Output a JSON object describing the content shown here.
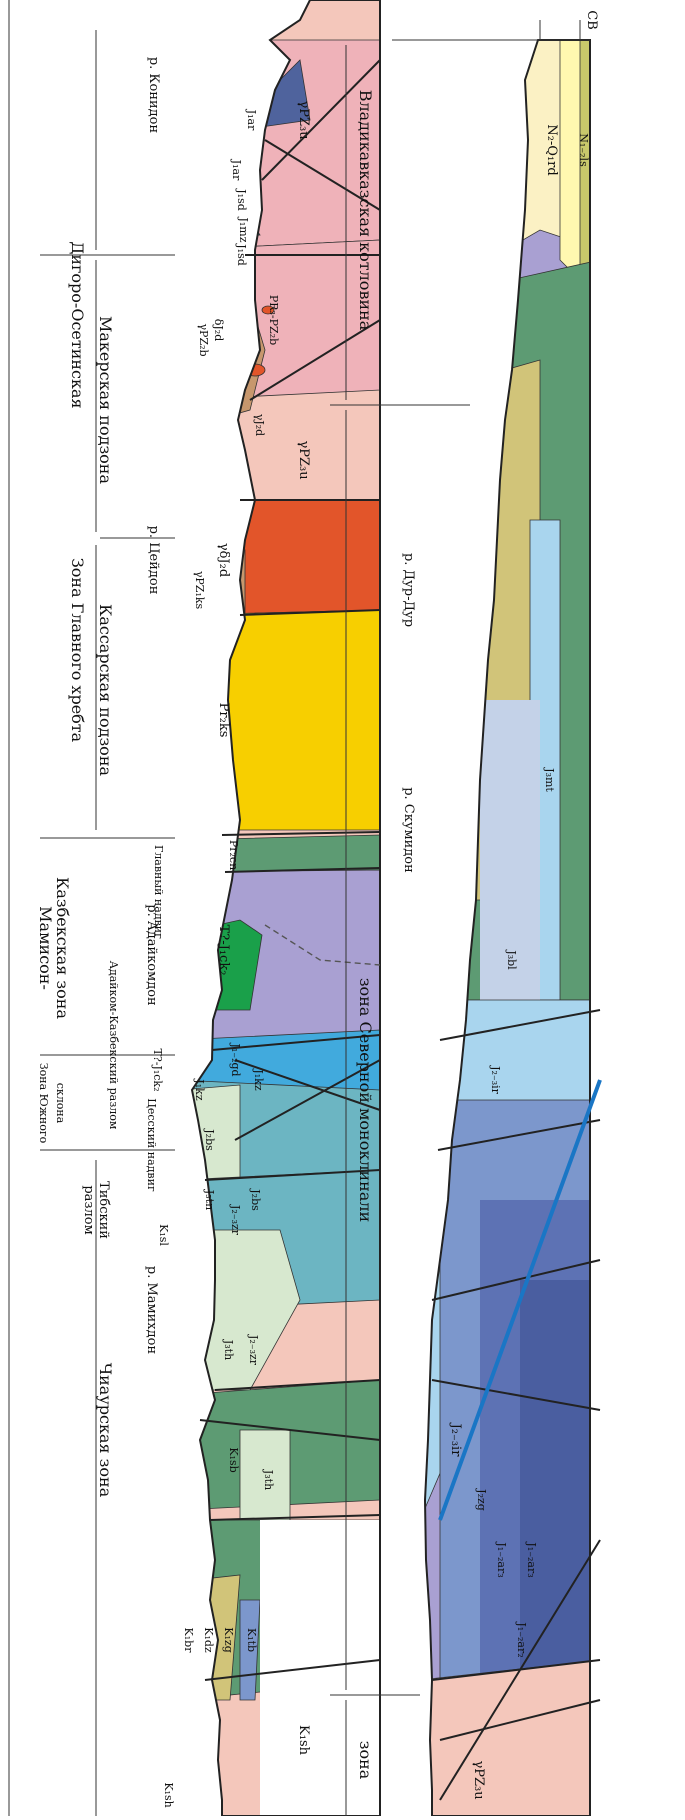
{
  "section_top": {
    "zones": {
      "digoro_osetinskaya": "Дигоро-Осетинская",
      "glavnogo_khrebta": "Зона Главного хребта",
      "makerskaya": "Макерская подзона",
      "kassarskaya": "Кассарская подзона",
      "mamison": "Мамисон-",
      "kazbekskaya": "Казбекская зона",
      "yuzhnogo_sklona_1": "Зона Южного",
      "yuzhnogo_sklona_2": "склона",
      "chiaurskaya": "Чиаурская зона"
    },
    "faults": {
      "glavnyi": "Главный надвиг",
      "adaikom": "Адайком-Казбекский разлом",
      "tsessky": "Цесский надвиг",
      "tibsky": "Тибский разлом",
      "tibsky_word": "Тибский",
      "razlom_word": "разлом"
    },
    "rivers": {
      "konpidon": "р. Конидон",
      "tseydon": "р. Цейдон",
      "adaikomdon": "р. Адайкомдон",
      "mamikhdon": "р. Мамихдон"
    },
    "units": {
      "ypz3u_top": "γPZ₃u",
      "ypz3u_mid": "γPZ₃u",
      "j1ar_a": "J₁ar",
      "j1ar_b": "J₁ar",
      "j1ar_c": "J₁ar",
      "j1mz_a": "J₁mz",
      "j1sd_a": "J₁sd",
      "j1mz_b": "J₁mz",
      "j1sd_b": "J₁sd",
      "pr3pz2b": "PR₃-PZ₂b",
      "dj2d_small": "δJ₂d",
      "ypz2b": "γPZ₂b",
      "yj2d": "γJ₂d",
      "dj2d_red": "γδJ₂d",
      "ypz1ks": "γPZ₁ks",
      "pr2ks": "Pr₂ks",
      "pr2cn": "Pr₂cn",
      "t_j1ck2_a": "T?-J₁ck₂",
      "t_j1ck2_b": "T?-J₁ck₂",
      "j1kz_a": "J₁kz",
      "j1kz_b": "J₁kz",
      "j12gd": "J₁₋₂gd",
      "j2bs_a": "J₂bs",
      "j2bs_b": "J₂bs",
      "j3tn": "J₃tn",
      "j23zr_a": "J₂₋₃zr",
      "j23zr_b": "J₂₋₃zr",
      "k1sl": "K₁sl",
      "j3th_a": "J₃th",
      "j3th_b": "J₃th",
      "k1sb": "K₁sb",
      "k1br": "K₁br",
      "k1dz": "K₁dz",
      "k1zg": "K₁zg",
      "k1tb": "K₁tb",
      "k1sh_a": "K₁sh",
      "k1sh_b": "K₁sh"
    }
  },
  "section_bottom": {
    "direction": "СВ",
    "zones": {
      "vladikavkaz": "Владикавказская котловина",
      "severnoy": "зона Северной моноклинали",
      "zona": "зона"
    },
    "rivers": {
      "dur_dur": "р. Дур-Дур",
      "skumidon": "р. Скумидон"
    },
    "units": {
      "n2q1rd": "N₂-Q₁rd",
      "n12ls": "N₁₋₂ls",
      "j3mt": "J₃mt",
      "j3bl": "J₃bl",
      "j23ir_a": "J₂₋₃ir",
      "j23ir_b": "J₂₋₃ir",
      "j2zg": "J₂zg",
      "j12ar3_a": "J₁₋₂ar₃",
      "j12ar3_b": "J₁₋₂ar₃",
      "j12ar2": "J₁₋₂ar₂",
      "ypz3u": "γPZ₃u"
    }
  },
  "colors": {
    "ypz": "#f4c7bb",
    "pink": "#efb2b9",
    "navy": "#4f639d",
    "brown": "#c7976d",
    "redOrange": "#e2552a",
    "yellow": "#f7cf00",
    "darkGreen": "#5d9b73",
    "lavender": "#a9a0d2",
    "brightGreen": "#1aa04a",
    "cyan": "#41aadd",
    "teal": "#6cb5c2",
    "paleGreen": "#d7e8cf",
    "olive": "#d1c479",
    "cream": "#fbf1c4",
    "lightYellow": "#fff8b0",
    "blue": "#7c97cc",
    "lightBlue": "#a9d5ee",
    "khaki": "#c8c86b",
    "orange": "#f3a06a"
  }
}
